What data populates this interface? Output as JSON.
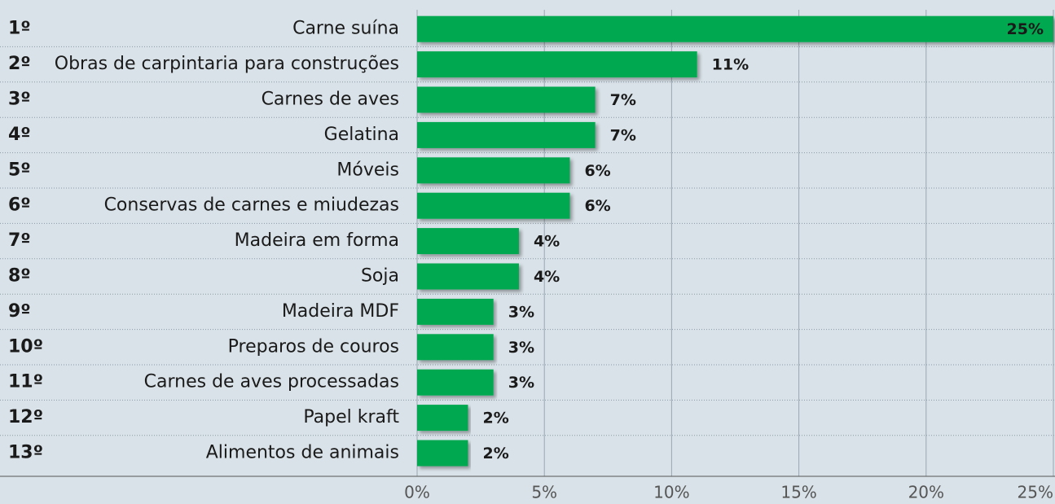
{
  "chart_data": {
    "type": "bar",
    "orientation": "horizontal",
    "ranks": [
      "1º",
      "2º",
      "3º",
      "4º",
      "5º",
      "6º",
      "7º",
      "8º",
      "9º",
      "10º",
      "11º",
      "12º",
      "13º"
    ],
    "categories": [
      "Carne suína",
      "Obras de carpintaria para construções",
      "Carnes de aves",
      "Gelatina",
      "Móveis",
      "Conservas de carnes e miudezas",
      "Madeira em forma",
      "Soja",
      "Madeira MDF",
      "Preparos de couros",
      "Carnes de aves processadas",
      "Papel kraft",
      "Alimentos de animais"
    ],
    "values": [
      25,
      11,
      7,
      7,
      6,
      6,
      4,
      4,
      3,
      3,
      3,
      2,
      2
    ],
    "value_labels": [
      "25%",
      "11%",
      "7%",
      "7%",
      "6%",
      "6%",
      "4%",
      "4%",
      "3%",
      "3%",
      "3%",
      "2%",
      "2%"
    ],
    "color": "#00a84f",
    "xlim": [
      0,
      25
    ],
    "xticks": [
      {
        "value": 0,
        "label": "0%"
      },
      {
        "value": 5,
        "label": "5%"
      },
      {
        "value": 10,
        "label": "10%"
      },
      {
        "value": 15,
        "label": "15%"
      },
      {
        "value": 20,
        "label": "20%"
      },
      {
        "value": 25,
        "label": "25%"
      }
    ],
    "grid": true
  }
}
